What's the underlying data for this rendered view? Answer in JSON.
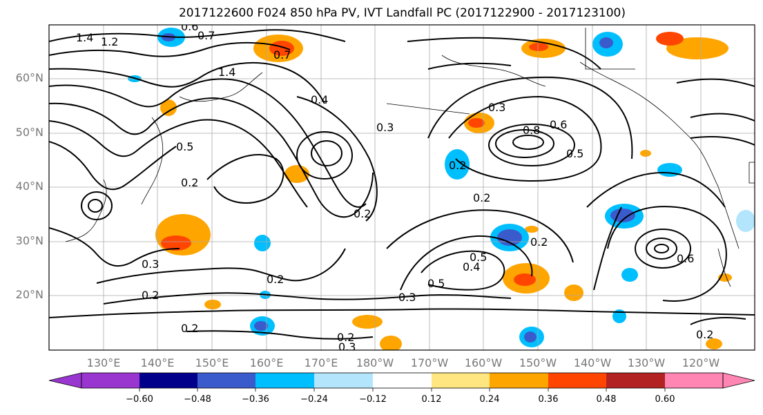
{
  "title": "2017122600 F024 850 hPa PV, IVT Landfall PC (2017122900 - 2017123100)",
  "lat_labels": [
    "60°N",
    "50°N",
    "40°N",
    "30°N",
    "20°N"
  ],
  "lon_labels": [
    "130°E",
    "140°E",
    "150°E",
    "160°E",
    "170°E",
    "180°W",
    "170°W",
    "160°W",
    "150°W",
    "140°W",
    "130°W",
    "120°W"
  ],
  "colorbar": {
    "ticks": [
      "−0.60",
      "−0.48",
      "−0.36",
      "−0.24",
      "−0.12",
      "0.12",
      "0.24",
      "0.36",
      "0.48",
      "0.60"
    ],
    "colors": [
      "#9a36d0",
      "#00008b",
      "#3a5bcc",
      "#00bfff",
      "#b3e5fc",
      "#ffffff",
      "#ffe680",
      "#ffa500",
      "#ff4500",
      "#b22222",
      "#ff85b3"
    ]
  },
  "contour_labels": [
    "1.4",
    "1.2",
    "0.7",
    "0.6",
    "0.5",
    "1.4",
    "0.4",
    "0.3",
    "0.2",
    "0.8",
    "0.6",
    "0.5",
    "0.3",
    "0.2",
    "0.3",
    "0.2",
    "0.2",
    "0.3",
    "0.2",
    "0.5",
    "0.5",
    "0.2",
    "0.2",
    "0.4",
    "0.3",
    "0.2",
    "0.2",
    "0.2",
    "0.6",
    "0.7"
  ]
}
